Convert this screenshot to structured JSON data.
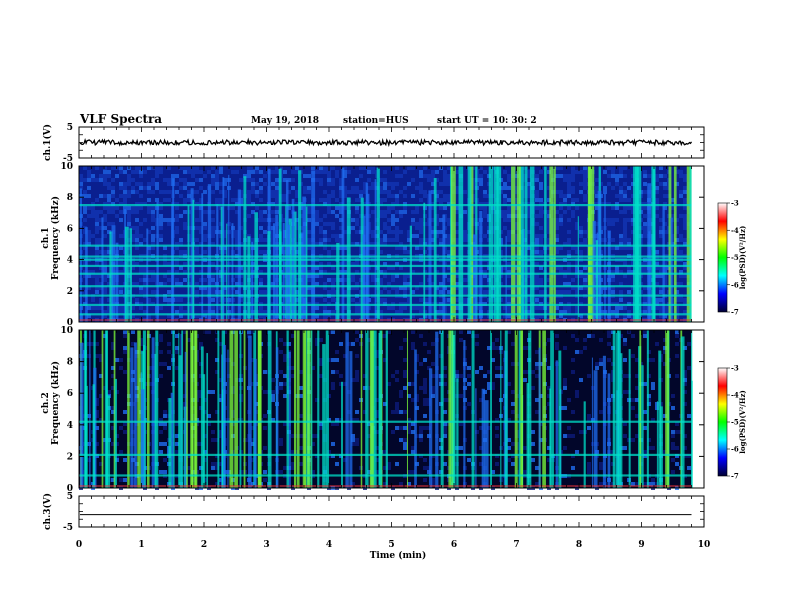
{
  "header": {
    "title": "VLF Spectra",
    "date": "May 19, 2018",
    "station": "station=HUS",
    "start": "start UT =  10: 30: 2"
  },
  "colors": {
    "background": "#000000",
    "low": "#0a1f8f",
    "mid": "#1f6cf0",
    "hot": "#00e0c8",
    "peak": "#7dff3a",
    "colormap": [
      "#000033",
      "#0000ff",
      "#00ffff",
      "#00ff00",
      "#ffff00",
      "#ff0000",
      "#ffffff"
    ]
  },
  "chart_data": [
    {
      "type": "line",
      "panel": "ch1-waveform",
      "ylabel": "ch.1(V)",
      "ylim": [
        -5,
        5
      ],
      "yticks": [
        "5",
        "-5"
      ],
      "approx_level": 0.0,
      "noise_amplitude": 0.8
    },
    {
      "type": "heatmap",
      "panel": "ch1-spectrogram",
      "ylabel": "ch.1\nFrequency (kHz)",
      "ylim": [
        0,
        10
      ],
      "yticks": [
        "0",
        "2",
        "4",
        "6",
        "8",
        "10"
      ],
      "xlim": [
        0,
        10
      ],
      "xunit": "min",
      "background_level": "medium",
      "horizontal_lines_khz": [
        0.5,
        1.1,
        1.7,
        2.3,
        3.1,
        3.6,
        4.0,
        4.2,
        4.9,
        7.5
      ],
      "bright_region_min": [
        5.8,
        9.8
      ],
      "colorbar": {
        "label": "log(PSD)(V²/Hz)",
        "range": [
          -7,
          -3
        ],
        "ticks": [
          "-3",
          "-4",
          "-5",
          "-6",
          "-7"
        ]
      }
    },
    {
      "type": "heatmap",
      "panel": "ch2-spectrogram",
      "ylabel": "ch.2\nFrequency (kHz)",
      "ylim": [
        0,
        10
      ],
      "yticks": [
        "0",
        "2",
        "4",
        "6",
        "8",
        "10"
      ],
      "xlim": [
        0,
        10
      ],
      "xunit": "min",
      "background_level": "low",
      "horizontal_lines_khz": [
        0.8,
        2.1,
        4.2
      ],
      "colorbar": {
        "label": "log(PSD)(V²/Hz)",
        "range": [
          -7,
          -3
        ],
        "ticks": [
          "-3",
          "-4",
          "-5",
          "-6",
          "-7"
        ]
      }
    },
    {
      "type": "line",
      "panel": "ch3-waveform",
      "ylabel": "ch.3(V)",
      "ylim": [
        -5,
        5
      ],
      "yticks": [
        "5",
        "-5"
      ],
      "approx_level": -1.0,
      "noise_amplitude": 0.0
    }
  ],
  "xaxis": {
    "label": "Time (min)",
    "ticks": [
      "0",
      "1",
      "2",
      "3",
      "4",
      "5",
      "6",
      "7",
      "8",
      "9",
      "10"
    ],
    "range": [
      0,
      10
    ],
    "data_end_min": 9.8
  }
}
